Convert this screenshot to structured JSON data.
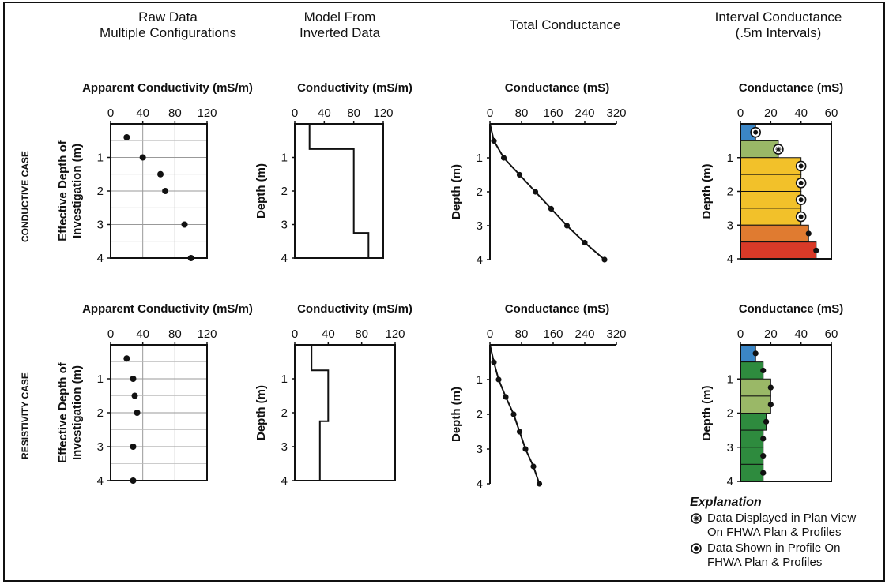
{
  "columns": [
    "Raw Data\nMultiple Configurations",
    "Model From\nInverted Data",
    "Total Conductance",
    "Interval Conductance\n(.5m Intervals)"
  ],
  "rows": [
    "CONDUCTIVE CASE",
    "RESISTIVITY CASE"
  ],
  "explanation": {
    "title": "Explanation",
    "items": [
      "Data Displayed in Plan View\nOn FHWA Plan & Profiles",
      "Data Shown in Profile On\nFHWA Plan & Profiles"
    ]
  },
  "colors": {
    "blue": "#3b86c6",
    "light_green": "#9ab867",
    "yellow": "#f2c12a",
    "orange": "#e07b30",
    "red": "#d93a28",
    "green": "#2e8b3e"
  },
  "chart_data": [
    {
      "type": "scatter",
      "case": "conductive",
      "title": "Apparent Conductivity (mS/m)",
      "ylabel": "Effective Depth of\nInvestigation (m)",
      "xlim": [
        0,
        120
      ],
      "xticks": [
        0,
        40,
        80,
        120
      ],
      "ylim": [
        0,
        4
      ],
      "yticks": [
        1,
        2,
        3,
        4
      ],
      "grid": true,
      "points": [
        [
          20,
          0.4
        ],
        [
          40,
          1.0
        ],
        [
          62,
          1.5
        ],
        [
          68,
          2.0
        ],
        [
          92,
          3.0
        ],
        [
          100,
          4.0
        ]
      ]
    },
    {
      "type": "line",
      "step": true,
      "case": "conductive",
      "title": "Conductivity (mS/m)",
      "ylabel": "Depth (m)",
      "xlim": [
        0,
        120
      ],
      "xticks": [
        0,
        40,
        80,
        120
      ],
      "ylim": [
        0,
        4
      ],
      "yticks": [
        1,
        2,
        3,
        4
      ],
      "grid": false,
      "points": [
        [
          20,
          0
        ],
        [
          20,
          0.75
        ],
        [
          80,
          0.75
        ],
        [
          80,
          3.25
        ],
        [
          100,
          3.25
        ],
        [
          100,
          4.0
        ]
      ]
    },
    {
      "type": "line",
      "markers": true,
      "case": "conductive",
      "title": "Conductance (mS)",
      "ylabel": "Depth (m)",
      "xlim": [
        0,
        320
      ],
      "xticks": [
        0,
        80,
        160,
        240,
        320
      ],
      "ylim": [
        0,
        4
      ],
      "yticks": [
        1,
        2,
        3,
        4
      ],
      "grid": false,
      "points": [
        [
          0,
          0
        ],
        [
          10,
          0.5
        ],
        [
          35,
          1.0
        ],
        [
          75,
          1.5
        ],
        [
          115,
          2.0
        ],
        [
          155,
          2.5
        ],
        [
          195,
          3.0
        ],
        [
          240,
          3.5
        ],
        [
          290,
          4.0
        ]
      ]
    },
    {
      "type": "bar",
      "horizontal": true,
      "case": "conductive",
      "title": "Conductance (mS)",
      "ylabel": "Depth (m)",
      "xlim": [
        0,
        60
      ],
      "xticks": [
        0,
        20,
        40,
        60
      ],
      "ylim": [
        0,
        4
      ],
      "yticks": [
        1,
        2,
        3,
        4
      ],
      "grid": false,
      "bars": [
        {
          "from": 0,
          "to": 0.5,
          "value": 10,
          "color": "blue",
          "marker": "filled"
        },
        {
          "from": 0.5,
          "to": 1.0,
          "value": 25,
          "color": "light_green",
          "marker": "plan"
        },
        {
          "from": 1.0,
          "to": 1.5,
          "value": 40,
          "color": "yellow",
          "marker": "filled"
        },
        {
          "from": 1.5,
          "to": 2.0,
          "value": 40,
          "color": "yellow",
          "marker": "filled"
        },
        {
          "from": 2.0,
          "to": 2.5,
          "value": 40,
          "color": "yellow",
          "marker": "filled"
        },
        {
          "from": 2.5,
          "to": 3.0,
          "value": 40,
          "color": "yellow",
          "marker": "filled"
        },
        {
          "from": 3.0,
          "to": 3.5,
          "value": 45,
          "color": "orange",
          "marker": "dot"
        },
        {
          "from": 3.5,
          "to": 4.0,
          "value": 50,
          "color": "red",
          "marker": "dot"
        }
      ]
    },
    {
      "type": "scatter",
      "case": "resistivity",
      "title": "Apparent Conductivity (mS/m)",
      "ylabel": "Effective Depth of\nInvestigation (m)",
      "xlim": [
        0,
        120
      ],
      "xticks": [
        0,
        40,
        80,
        120
      ],
      "ylim": [
        0,
        4
      ],
      "yticks": [
        1,
        2,
        3,
        4
      ],
      "grid": true,
      "points": [
        [
          20,
          0.4
        ],
        [
          28,
          1.0
        ],
        [
          30,
          1.5
        ],
        [
          33,
          2.0
        ],
        [
          28,
          3.0
        ],
        [
          28,
          4.0
        ]
      ]
    },
    {
      "type": "line",
      "step": true,
      "case": "resistivity",
      "title": "Conductivity (mS/m)",
      "ylabel": "Depth (m)",
      "xlim": [
        0,
        120
      ],
      "xticks": [
        0,
        40,
        80,
        120
      ],
      "ylim": [
        0,
        4
      ],
      "yticks": [
        1,
        2,
        3,
        4
      ],
      "grid": false,
      "points": [
        [
          20,
          0
        ],
        [
          20,
          0.75
        ],
        [
          40,
          0.75
        ],
        [
          40,
          2.25
        ],
        [
          30,
          2.25
        ],
        [
          30,
          4.0
        ]
      ]
    },
    {
      "type": "line",
      "markers": true,
      "case": "resistivity",
      "title": "Conductance (mS)",
      "ylabel": "Depth (m)",
      "xlim": [
        0,
        320
      ],
      "xticks": [
        0,
        80,
        160,
        240,
        320
      ],
      "ylim": [
        0,
        4
      ],
      "yticks": [
        1,
        2,
        3,
        4
      ],
      "grid": false,
      "points": [
        [
          0,
          0
        ],
        [
          10,
          0.5
        ],
        [
          22,
          1.0
        ],
        [
          40,
          1.5
        ],
        [
          60,
          2.0
        ],
        [
          75,
          2.5
        ],
        [
          90,
          3.0
        ],
        [
          110,
          3.5
        ],
        [
          125,
          4.0
        ]
      ]
    },
    {
      "type": "bar",
      "horizontal": true,
      "case": "resistivity",
      "title": "Conductance (mS)",
      "ylabel": "Depth (m)",
      "xlim": [
        0,
        60
      ],
      "xticks": [
        0,
        20,
        40,
        60
      ],
      "ylim": [
        0,
        4
      ],
      "yticks": [
        1,
        2,
        3,
        4
      ],
      "grid": false,
      "bars": [
        {
          "from": 0,
          "to": 0.5,
          "value": 10,
          "color": "blue",
          "marker": "dot"
        },
        {
          "from": 0.5,
          "to": 1.0,
          "value": 15,
          "color": "green",
          "marker": "dot"
        },
        {
          "from": 1.0,
          "to": 1.5,
          "value": 20,
          "color": "light_green",
          "marker": "dot"
        },
        {
          "from": 1.5,
          "to": 2.0,
          "value": 20,
          "color": "light_green",
          "marker": "dot"
        },
        {
          "from": 2.0,
          "to": 2.5,
          "value": 17,
          "color": "green",
          "marker": "dot"
        },
        {
          "from": 2.5,
          "to": 3.0,
          "value": 15,
          "color": "green",
          "marker": "dot"
        },
        {
          "from": 3.0,
          "to": 3.5,
          "value": 15,
          "color": "green",
          "marker": "dot"
        },
        {
          "from": 3.5,
          "to": 4.0,
          "value": 15,
          "color": "green",
          "marker": "dot"
        }
      ]
    }
  ]
}
